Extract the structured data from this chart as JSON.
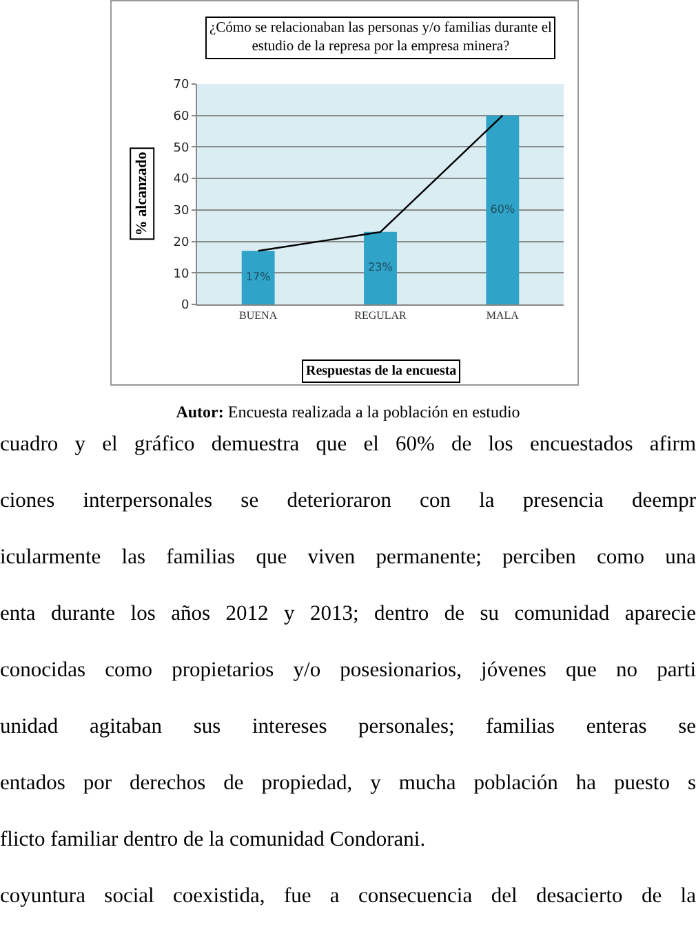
{
  "chart_data": {
    "type": "bar",
    "title": "¿Cómo se relacionaban las personas y/o familias durante el estudio de la represa por la empresa minera?",
    "xlabel": "Respuestas de la encuesta",
    "ylabel": "% alcanzado",
    "categories": [
      "BUENA",
      "REGULAR",
      "MALA"
    ],
    "series": [
      {
        "color": "#2fa3c8",
        "values": [
          17,
          23,
          60
        ],
        "value_labels": [
          "17%",
          "23%",
          "60%"
        ]
      },
      {
        "type": "line",
        "color": "#000000",
        "values": [
          17,
          23,
          60
        ]
      }
    ],
    "ylim": [
      0,
      70
    ],
    "yticks": [
      0,
      10,
      20,
      30,
      40,
      50,
      60,
      70
    ],
    "grid": "y",
    "marker": "none",
    "line_style": "solid",
    "annotations": [
      "Autor: Encuesta realizada a la población en estudio",
      "cuadro y el gráfico demuestra que el 60% de los encuestados afirm",
      "ciones interpersonales se deterioraron con la presencia deempr",
      "icularmente las familias que viven permanente; perciben como una",
      "enta durante los años 2012 y 2013; dentro de su comunidad aparecie",
      "conocidas como propietarios y/o posesionarios, jóvenes que no parti",
      "unidad agitaban sus intereses personales; familias enteras se",
      "entados por derechos de propiedad, y mucha población ha puesto s",
      "flicto familiar dentro de la comunidad Condorani.",
      "coyuntura social coexistida, fue a consecuencia del desacierto de la"
    ]
  }
}
